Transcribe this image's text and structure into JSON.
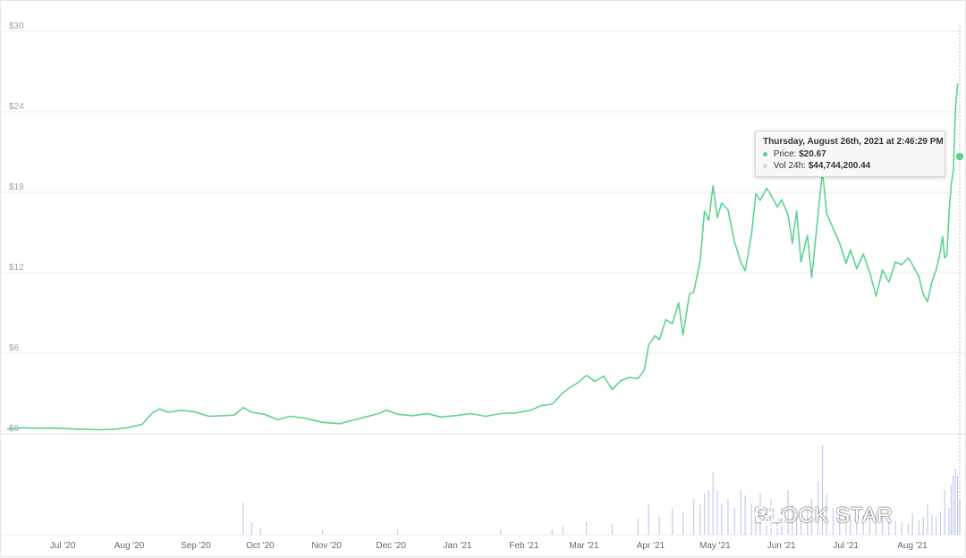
{
  "colors": {
    "line": "#5ed38e",
    "volume": "#c3cbf0",
    "grid": "#eeeeee",
    "zero_line": "#dcdcdc"
  },
  "tooltip": {
    "title": "Thursday, August 26th, 2021 at 2:46:29 PM",
    "price_label": "Price:",
    "price_value": "$20.67",
    "volume_label": "Vol 24h:",
    "volume_value": "$44,744,200.44"
  },
  "watermark": {
    "text": "BLOCK STAR"
  },
  "chart_data": {
    "type": "line",
    "title": "",
    "xlabel": "",
    "ylabel": "",
    "y_ticks": [
      "$30",
      "$24",
      "$18",
      "$12",
      "$6",
      "$0"
    ],
    "ylim": [
      0,
      30
    ],
    "x_ticks": [
      "Jul '20",
      "Aug '20",
      "Sep '20",
      "Oct '20",
      "Nov '20",
      "Dec '20",
      "Jan '21",
      "Feb '21",
      "Mar '21",
      "Apr '21",
      "May '21",
      "Jun '21",
      "Jul '21",
      "Aug '21"
    ],
    "x_range": [
      "2020-06-08",
      "2021-08-26"
    ],
    "grid": true,
    "series": [
      {
        "values": [
          [
            "2020-06-08",
            0.35
          ],
          [
            "2020-06-15",
            0.45
          ],
          [
            "2020-06-22",
            0.4
          ],
          [
            "2020-06-29",
            0.42
          ],
          [
            "2020-07-06",
            0.38
          ],
          [
            "2020-07-13",
            0.33
          ],
          [
            "2020-07-20",
            0.3
          ],
          [
            "2020-07-27",
            0.32
          ],
          [
            "2020-08-03",
            0.45
          ],
          [
            "2020-08-10",
            0.7
          ],
          [
            "2020-08-15",
            1.6
          ],
          [
            "2020-08-18",
            1.85
          ],
          [
            "2020-08-22",
            1.6
          ],
          [
            "2020-08-28",
            1.75
          ],
          [
            "2020-09-03",
            1.65
          ],
          [
            "2020-09-10",
            1.3
          ],
          [
            "2020-09-17",
            1.35
          ],
          [
            "2020-09-22",
            1.4
          ],
          [
            "2020-09-26",
            1.95
          ],
          [
            "2020-09-30",
            1.6
          ],
          [
            "2020-10-06",
            1.45
          ],
          [
            "2020-10-12",
            1.05
          ],
          [
            "2020-10-18",
            1.3
          ],
          [
            "2020-10-25",
            1.15
          ],
          [
            "2020-11-02",
            0.85
          ],
          [
            "2020-11-10",
            0.75
          ],
          [
            "2020-11-16",
            1.0
          ],
          [
            "2020-11-22",
            1.25
          ],
          [
            "2020-11-28",
            1.5
          ],
          [
            "2020-12-02",
            1.75
          ],
          [
            "2020-12-07",
            1.45
          ],
          [
            "2020-12-14",
            1.35
          ],
          [
            "2020-12-21",
            1.5
          ],
          [
            "2020-12-27",
            1.25
          ],
          [
            "2021-01-03",
            1.35
          ],
          [
            "2021-01-10",
            1.5
          ],
          [
            "2021-01-17",
            1.3
          ],
          [
            "2021-01-24",
            1.5
          ],
          [
            "2021-01-31",
            1.55
          ],
          [
            "2021-02-07",
            1.75
          ],
          [
            "2021-02-12",
            2.1
          ],
          [
            "2021-02-17",
            2.2
          ],
          [
            "2021-02-22",
            3.05
          ],
          [
            "2021-02-25",
            3.4
          ],
          [
            "2021-03-01",
            3.8
          ],
          [
            "2021-03-05",
            4.35
          ],
          [
            "2021-03-09",
            3.9
          ],
          [
            "2021-03-13",
            4.3
          ],
          [
            "2021-03-17",
            3.3
          ],
          [
            "2021-03-21",
            3.95
          ],
          [
            "2021-03-25",
            4.2
          ],
          [
            "2021-03-29",
            4.1
          ],
          [
            "2021-04-01",
            4.75
          ],
          [
            "2021-04-03",
            6.6
          ],
          [
            "2021-04-06",
            7.3
          ],
          [
            "2021-04-08",
            7.0
          ],
          [
            "2021-04-11",
            8.5
          ],
          [
            "2021-04-14",
            8.2
          ],
          [
            "2021-04-17",
            9.75
          ],
          [
            "2021-04-19",
            7.35
          ],
          [
            "2021-04-22",
            10.4
          ],
          [
            "2021-04-24",
            10.55
          ],
          [
            "2021-04-27",
            12.9
          ],
          [
            "2021-04-29",
            16.6
          ],
          [
            "2021-05-01",
            15.9
          ],
          [
            "2021-05-03",
            18.5
          ],
          [
            "2021-05-05",
            16.1
          ],
          [
            "2021-05-07",
            17.2
          ],
          [
            "2021-05-10",
            16.7
          ],
          [
            "2021-05-13",
            14.3
          ],
          [
            "2021-05-16",
            12.8
          ],
          [
            "2021-05-18",
            12.15
          ],
          [
            "2021-05-21",
            14.9
          ],
          [
            "2021-05-23",
            17.9
          ],
          [
            "2021-05-25",
            17.4
          ],
          [
            "2021-05-28",
            18.3
          ],
          [
            "2021-05-30",
            17.8
          ],
          [
            "2021-06-02",
            16.9
          ],
          [
            "2021-06-04",
            17.45
          ],
          [
            "2021-06-07",
            16.3
          ],
          [
            "2021-06-09",
            14.2
          ],
          [
            "2021-06-11",
            16.6
          ],
          [
            "2021-06-13",
            12.8
          ],
          [
            "2021-06-16",
            14.8
          ],
          [
            "2021-06-18",
            11.65
          ],
          [
            "2021-06-21",
            16.4
          ],
          [
            "2021-06-23",
            19.6
          ],
          [
            "2021-06-25",
            16.4
          ],
          [
            "2021-06-28",
            15.3
          ],
          [
            "2021-07-01",
            14.2
          ],
          [
            "2021-07-04",
            12.7
          ],
          [
            "2021-07-06",
            13.7
          ],
          [
            "2021-07-09",
            12.3
          ],
          [
            "2021-07-12",
            13.4
          ],
          [
            "2021-07-15",
            12.05
          ],
          [
            "2021-07-18",
            10.25
          ],
          [
            "2021-07-21",
            12.2
          ],
          [
            "2021-07-24",
            11.3
          ],
          [
            "2021-07-27",
            12.8
          ],
          [
            "2021-07-30",
            12.6
          ],
          [
            "2021-08-02",
            13.1
          ],
          [
            "2021-08-04",
            12.6
          ],
          [
            "2021-08-07",
            11.7
          ],
          [
            "2021-08-09",
            10.4
          ],
          [
            "2021-08-11",
            9.85
          ],
          [
            "2021-08-13",
            11.3
          ],
          [
            "2021-08-15",
            12.2
          ],
          [
            "2021-08-16",
            12.9
          ],
          [
            "2021-08-17",
            13.6
          ],
          [
            "2021-08-18",
            14.7
          ],
          [
            "2021-08-19",
            13.1
          ],
          [
            "2021-08-20",
            13.3
          ],
          [
            "2021-08-21",
            16.45
          ],
          [
            "2021-08-22",
            18.5
          ],
          [
            "2021-08-23",
            19.6
          ],
          [
            "2021-08-24",
            24.1
          ],
          [
            "2021-08-25",
            26.1
          ],
          [
            "2021-08-25T12",
            23.5
          ],
          [
            "2021-08-26",
            20.67
          ]
        ]
      }
    ],
    "volume_series": [
      [
        "2020-09-26",
        0.36
      ],
      [
        "2020-09-30",
        0.14
      ],
      [
        "2020-10-04",
        0.08
      ],
      [
        "2020-11-02",
        0.05
      ],
      [
        "2020-12-07",
        0.06
      ],
      [
        "2021-01-24",
        0.05
      ],
      [
        "2021-02-17",
        0.06
      ],
      [
        "2021-02-22",
        0.1
      ],
      [
        "2021-03-05",
        0.14
      ],
      [
        "2021-03-17",
        0.12
      ],
      [
        "2021-03-29",
        0.18
      ],
      [
        "2021-04-03",
        0.35
      ],
      [
        "2021-04-08",
        0.2
      ],
      [
        "2021-04-14",
        0.3
      ],
      [
        "2021-04-19",
        0.26
      ],
      [
        "2021-04-24",
        0.4
      ],
      [
        "2021-04-27",
        0.34
      ],
      [
        "2021-04-29",
        0.46
      ],
      [
        "2021-05-01",
        0.5
      ],
      [
        "2021-05-03",
        0.7
      ],
      [
        "2021-05-05",
        0.5
      ],
      [
        "2021-05-07",
        0.35
      ],
      [
        "2021-05-10",
        0.4
      ],
      [
        "2021-05-13",
        0.3
      ],
      [
        "2021-05-16",
        0.5
      ],
      [
        "2021-05-18",
        0.44
      ],
      [
        "2021-05-21",
        0.35
      ],
      [
        "2021-05-23",
        0.3
      ],
      [
        "2021-05-25",
        0.46
      ],
      [
        "2021-05-28",
        0.3
      ],
      [
        "2021-05-30",
        0.4
      ],
      [
        "2021-06-02",
        0.24
      ],
      [
        "2021-06-04",
        0.3
      ],
      [
        "2021-06-07",
        0.5
      ],
      [
        "2021-06-09",
        0.34
      ],
      [
        "2021-06-11",
        0.2
      ],
      [
        "2021-06-13",
        0.26
      ],
      [
        "2021-06-16",
        0.28
      ],
      [
        "2021-06-18",
        0.4
      ],
      [
        "2021-06-21",
        0.6
      ],
      [
        "2021-06-23",
        1.0
      ],
      [
        "2021-06-25",
        0.46
      ],
      [
        "2021-06-28",
        0.3
      ],
      [
        "2021-07-01",
        0.26
      ],
      [
        "2021-07-04",
        0.2
      ],
      [
        "2021-07-06",
        0.24
      ],
      [
        "2021-07-09",
        0.18
      ],
      [
        "2021-07-12",
        0.22
      ],
      [
        "2021-07-15",
        0.3
      ],
      [
        "2021-07-18",
        0.26
      ],
      [
        "2021-07-21",
        0.2
      ],
      [
        "2021-07-24",
        0.18
      ],
      [
        "2021-07-27",
        0.16
      ],
      [
        "2021-07-30",
        0.14
      ],
      [
        "2021-08-02",
        0.12
      ],
      [
        "2021-08-04",
        0.24
      ],
      [
        "2021-08-07",
        0.16
      ],
      [
        "2021-08-09",
        0.2
      ],
      [
        "2021-08-11",
        0.34
      ],
      [
        "2021-08-13",
        0.22
      ],
      [
        "2021-08-15",
        0.2
      ],
      [
        "2021-08-17",
        0.26
      ],
      [
        "2021-08-19",
        0.5
      ],
      [
        "2021-08-21",
        0.3
      ],
      [
        "2021-08-22",
        0.56
      ],
      [
        "2021-08-23",
        0.66
      ],
      [
        "2021-08-24",
        0.74
      ],
      [
        "2021-08-25",
        0.66
      ],
      [
        "2021-08-26",
        0.4
      ]
    ]
  }
}
